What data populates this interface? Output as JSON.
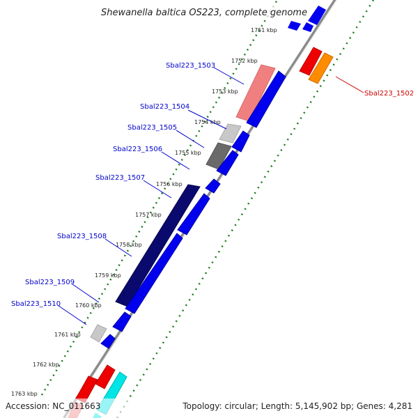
{
  "title": "Shewanella baltica OS223, complete genome",
  "footer": {
    "accession": "Accession: NC_011663",
    "summary": "Topology: circular; Length: 5,145,902 bp; Genes: 4,281"
  },
  "scale_ticks": [
    "1751 kbp",
    "1752 kbp",
    "1753 kbp",
    "1754 kbp",
    "1755 kbp",
    "1756 kbp",
    "1757 kbp",
    "1758 kbp",
    "1759 kbp",
    "1760 kbp",
    "1761 kbp",
    "1762 kbp",
    "1763 kbp"
  ],
  "gene_labels": [
    {
      "id": "Sbal223_1502",
      "color": "#cc0000"
    },
    {
      "id": "Sbal223_1503",
      "color": "#0000cc"
    },
    {
      "id": "Sbal223_1504",
      "color": "#0000cc"
    },
    {
      "id": "Sbal223_1505",
      "color": "#0000cc"
    },
    {
      "id": "Sbal223_1506",
      "color": "#0000cc"
    },
    {
      "id": "Sbal223_1507",
      "color": "#0000cc"
    },
    {
      "id": "Sbal223_1508",
      "color": "#0000cc"
    },
    {
      "id": "Sbal223_1509",
      "color": "#0000cc"
    },
    {
      "id": "Sbal223_1510",
      "color": "#0000cc"
    }
  ],
  "colors": {
    "backbone": "#8a8a8a",
    "dotted_track": "#1a7a1a",
    "cds_blue": "#0000ee",
    "navy": "#0a0a6e",
    "salmon": "#f08080",
    "grey_light": "#c8c8c8",
    "grey_dark": "#6a6a6a",
    "red": "#ee0000",
    "orange": "#ff8c00",
    "cyan": "#00e5e5"
  }
}
